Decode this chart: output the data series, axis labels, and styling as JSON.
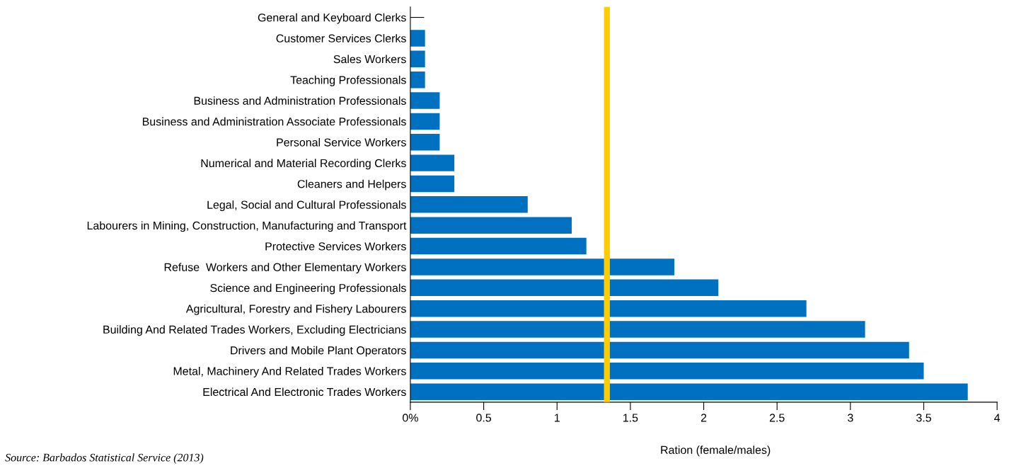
{
  "chart_data": {
    "type": "bar",
    "orientation": "horizontal",
    "categories": [
      "General and Keyboard Clerks",
      "Customer Services Clerks",
      "Sales Workers",
      "Teaching Professionals",
      "Business and Administration Professionals",
      "Business and Administration Associate Professionals",
      "Personal Service Workers",
      "Numerical and Material Recording Clerks",
      "Cleaners and Helpers",
      "Legal, Social and Cultural Professionals",
      "Labourers in Mining, Construction, Manufacturing and Transport",
      "Protective Services Workers",
      "Refuse  Workers and Other Elementary Workers",
      "Science and Engineering Professionals",
      "Agricultural, Forestry and Fishery Labourers",
      "Building And Related Trades Workers, Excluding Electricians",
      "Drivers and Mobile Plant Operators",
      "Metal, Machinery And Related Trades Workers",
      "Electrical And Electronic Trades Workers"
    ],
    "values": [
      0,
      0.1,
      0.1,
      0.1,
      0.2,
      0.2,
      0.2,
      0.3,
      0.3,
      0.8,
      1.1,
      1.2,
      1.8,
      2.1,
      2.7,
      3.1,
      3.4,
      3.5,
      3.8
    ],
    "color": "#0070c0",
    "xlim": [
      0,
      4
    ],
    "xticks": [
      {
        "value": 0,
        "label": "0%"
      },
      0.5,
      1,
      1.5,
      2,
      2.5,
      3,
      3.5,
      4
    ],
    "xlabel": "Ration (female/males)",
    "ref_lines": [
      {
        "axis": "x",
        "value": 1.34,
        "color": "#ffcc00"
      }
    ],
    "annotations": [
      "Source: Barbados Statistical Service (2013)"
    ],
    "grid": false
  }
}
